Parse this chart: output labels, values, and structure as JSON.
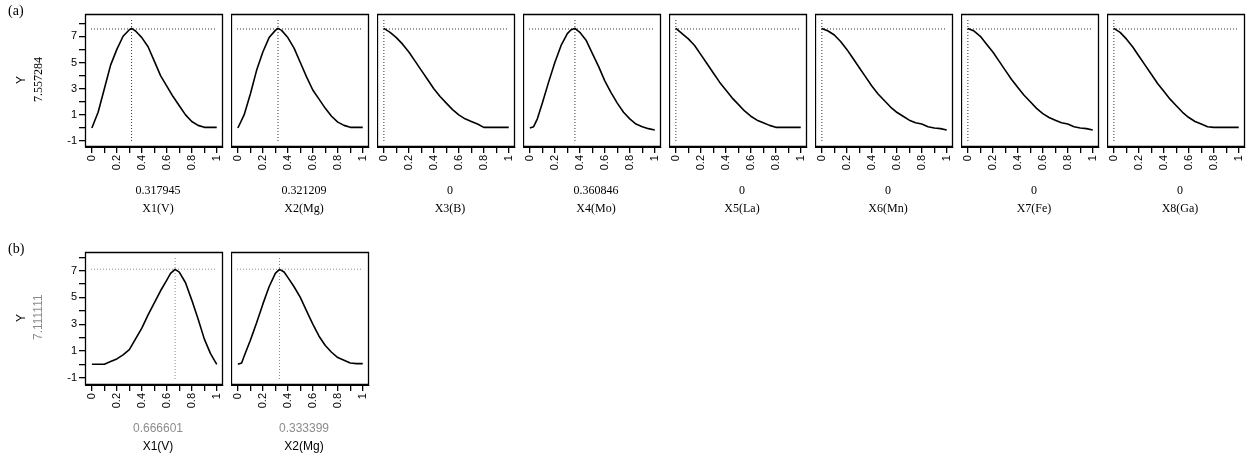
{
  "chart_data": [
    {
      "type": "line",
      "annotations": [
        "(a)",
        "7.557284",
        "0.317945"
      ],
      "xlabel": "X1(V)",
      "ylabel": "Y",
      "marker": "none",
      "xlim": [
        -0.055,
        1.05
      ],
      "ylim": [
        -1.45,
        8.7
      ],
      "xticks": [
        0,
        {
          "value": 0.1,
          "label": null
        },
        0.2,
        {
          "value": 0.3,
          "label": null
        },
        0.4,
        {
          "value": 0.5,
          "label": null
        },
        0.6,
        {
          "value": 0.7,
          "label": null
        },
        0.8,
        {
          "value": 0.9,
          "label": null
        },
        1
      ],
      "yticks": [
        -1,
        {
          "value": 0,
          "label": null
        },
        1,
        {
          "value": 2,
          "label": null
        },
        3,
        {
          "value": 4,
          "label": null
        },
        5,
        {
          "value": 6,
          "label": null
        },
        7,
        {
          "value": 8,
          "label": null
        }
      ],
      "series": [
        {
          "color": "#000000",
          "x": [
            0,
            0.05,
            0.1,
            0.15,
            0.2,
            0.25,
            0.3,
            0.317945,
            0.35,
            0.4,
            0.45,
            0.5,
            0.55,
            0.6,
            0.65,
            0.7,
            0.75,
            0.8,
            0.85,
            0.9,
            1
          ],
          "values": [
            0,
            1.2,
            3.0,
            4.8,
            6.0,
            7.0,
            7.5,
            7.6,
            7.4,
            6.9,
            6.2,
            5.1,
            4.0,
            3.2,
            2.4,
            1.7,
            1.0,
            0.5,
            0.2,
            0.05,
            0.05
          ]
        }
      ],
      "ref_lines": [
        {
          "axis": "y",
          "value": 7.557284,
          "color": "#333333",
          "line_style": "dotted"
        },
        {
          "axis": "x",
          "value": 0.317945,
          "color": "#333333",
          "line_style": "dotted"
        }
      ]
    },
    {
      "type": "line",
      "annotations": [
        "0.321209"
      ],
      "xlabel": "X2(Mg)",
      "marker": "none",
      "tick_labels": "x",
      "xlim": [
        -0.055,
        1.05
      ],
      "ylim": [
        -1.45,
        8.7
      ],
      "xticks": [
        0,
        {
          "value": 0.1,
          "label": null
        },
        0.2,
        {
          "value": 0.3,
          "label": null
        },
        0.4,
        {
          "value": 0.5,
          "label": null
        },
        0.6,
        {
          "value": 0.7,
          "label": null
        },
        0.8,
        {
          "value": 0.9,
          "label": null
        },
        1
      ],
      "series": [
        {
          "color": "#000000",
          "x": [
            0,
            0.05,
            0.1,
            0.15,
            0.2,
            0.25,
            0.3,
            0.321209,
            0.35,
            0.4,
            0.45,
            0.5,
            0.55,
            0.6,
            0.65,
            0.7,
            0.75,
            0.8,
            0.85,
            0.9,
            1
          ],
          "values": [
            0,
            1.0,
            2.6,
            4.4,
            5.8,
            6.9,
            7.45,
            7.6,
            7.45,
            6.9,
            6.1,
            5.0,
            3.9,
            2.9,
            2.2,
            1.5,
            0.9,
            0.45,
            0.2,
            0.05,
            0.05
          ]
        }
      ],
      "ref_lines": [
        {
          "axis": "y",
          "value": 7.557284,
          "color": "#333333",
          "line_style": "dotted"
        },
        {
          "axis": "x",
          "value": 0.321209,
          "color": "#333333",
          "line_style": "dotted"
        }
      ]
    },
    {
      "type": "line",
      "annotations": [
        "0"
      ],
      "xlabel": "X3(B)",
      "marker": "none",
      "tick_labels": "x",
      "xlim": [
        -0.055,
        1.05
      ],
      "ylim": [
        -1.45,
        8.7
      ],
      "xticks": [
        0,
        {
          "value": 0.1,
          "label": null
        },
        0.2,
        {
          "value": 0.3,
          "label": null
        },
        0.4,
        {
          "value": 0.5,
          "label": null
        },
        0.6,
        {
          "value": 0.7,
          "label": null
        },
        0.8,
        {
          "value": 0.9,
          "label": null
        },
        1
      ],
      "series": [
        {
          "color": "#000000",
          "x": [
            0,
            0.05,
            0.1,
            0.15,
            0.2,
            0.25,
            0.3,
            0.35,
            0.4,
            0.45,
            0.5,
            0.55,
            0.6,
            0.65,
            0.7,
            0.75,
            0.8,
            0.9,
            1
          ],
          "values": [
            7.6,
            7.3,
            6.9,
            6.4,
            5.8,
            5.1,
            4.4,
            3.7,
            3.0,
            2.4,
            1.9,
            1.4,
            1.0,
            0.7,
            0.5,
            0.3,
            0.05,
            0.05,
            0.05
          ]
        }
      ],
      "ref_lines": [
        {
          "axis": "y",
          "value": 7.557284,
          "color": "#333333",
          "line_style": "dotted"
        },
        {
          "axis": "x",
          "value": 0,
          "color": "#333333",
          "line_style": "dotted"
        }
      ]
    },
    {
      "type": "line",
      "annotations": [
        "0.360846"
      ],
      "xlabel": "X4(Mo)",
      "marker": "none",
      "tick_labels": "x",
      "xlim": [
        -0.055,
        1.05
      ],
      "ylim": [
        -1.45,
        8.7
      ],
      "xticks": [
        0,
        {
          "value": 0.1,
          "label": null
        },
        0.2,
        {
          "value": 0.3,
          "label": null
        },
        0.4,
        {
          "value": 0.5,
          "label": null
        },
        0.6,
        {
          "value": 0.7,
          "label": null
        },
        0.8,
        {
          "value": 0.9,
          "label": null
        },
        1
      ],
      "series": [
        {
          "color": "#000000",
          "x": [
            0,
            0.03,
            0.06,
            0.1,
            0.15,
            0.2,
            0.25,
            0.3,
            0.33,
            0.360846,
            0.4,
            0.45,
            0.5,
            0.55,
            0.6,
            0.65,
            0.7,
            0.75,
            0.8,
            0.85,
            0.9,
            0.95,
            1
          ],
          "values": [
            0,
            0.1,
            0.7,
            1.9,
            3.5,
            5.0,
            6.3,
            7.2,
            7.5,
            7.6,
            7.3,
            6.7,
            5.7,
            4.7,
            3.6,
            2.7,
            1.9,
            1.2,
            0.7,
            0.3,
            0.1,
            -0.05,
            -0.15
          ]
        }
      ],
      "ref_lines": [
        {
          "axis": "y",
          "value": 7.557284,
          "color": "#333333",
          "line_style": "dotted"
        },
        {
          "axis": "x",
          "value": 0.360846,
          "color": "#333333",
          "line_style": "dotted"
        }
      ]
    },
    {
      "type": "line",
      "annotations": [
        "0"
      ],
      "xlabel": "X5(La)",
      "marker": "none",
      "tick_labels": "x",
      "xlim": [
        -0.055,
        1.05
      ],
      "ylim": [
        -1.45,
        8.7
      ],
      "xticks": [
        0,
        {
          "value": 0.1,
          "label": null
        },
        0.2,
        {
          "value": 0.3,
          "label": null
        },
        0.4,
        {
          "value": 0.5,
          "label": null
        },
        0.6,
        {
          "value": 0.7,
          "label": null
        },
        0.8,
        {
          "value": 0.9,
          "label": null
        },
        1
      ],
      "series": [
        {
          "color": "#000000",
          "x": [
            0,
            0.05,
            0.1,
            0.15,
            0.2,
            0.25,
            0.3,
            0.35,
            0.4,
            0.45,
            0.5,
            0.55,
            0.6,
            0.65,
            0.7,
            0.75,
            0.8,
            0.9,
            1
          ],
          "values": [
            7.6,
            7.2,
            6.8,
            6.3,
            5.6,
            4.9,
            4.2,
            3.5,
            2.9,
            2.3,
            1.8,
            1.3,
            0.9,
            0.6,
            0.4,
            0.2,
            0.05,
            0.05,
            0.05
          ]
        }
      ],
      "ref_lines": [
        {
          "axis": "y",
          "value": 7.557284,
          "color": "#333333",
          "line_style": "dotted"
        },
        {
          "axis": "x",
          "value": 0,
          "color": "#333333",
          "line_style": "dotted"
        }
      ]
    },
    {
      "type": "line",
      "annotations": [
        "0"
      ],
      "xlabel": "X6(Mn)",
      "marker": "none",
      "tick_labels": "x",
      "xlim": [
        -0.055,
        1.05
      ],
      "ylim": [
        -1.45,
        8.7
      ],
      "xticks": [
        0,
        {
          "value": 0.1,
          "label": null
        },
        0.2,
        {
          "value": 0.3,
          "label": null
        },
        0.4,
        {
          "value": 0.5,
          "label": null
        },
        0.6,
        {
          "value": 0.7,
          "label": null
        },
        0.8,
        {
          "value": 0.9,
          "label": null
        },
        1
      ],
      "series": [
        {
          "color": "#000000",
          "x": [
            0,
            0.05,
            0.1,
            0.15,
            0.2,
            0.25,
            0.3,
            0.35,
            0.4,
            0.45,
            0.5,
            0.55,
            0.6,
            0.65,
            0.7,
            0.75,
            0.8,
            0.85,
            0.9,
            0.95,
            1
          ],
          "values": [
            7.6,
            7.4,
            7.1,
            6.6,
            6.0,
            5.3,
            4.6,
            3.9,
            3.2,
            2.6,
            2.1,
            1.6,
            1.2,
            0.9,
            0.6,
            0.4,
            0.3,
            0.1,
            0,
            -0.05,
            -0.15
          ]
        }
      ],
      "ref_lines": [
        {
          "axis": "y",
          "value": 7.557284,
          "color": "#333333",
          "line_style": "dotted"
        },
        {
          "axis": "x",
          "value": 0,
          "color": "#333333",
          "line_style": "dotted"
        }
      ]
    },
    {
      "type": "line",
      "annotations": [
        "0"
      ],
      "xlabel": "X7(Fe)",
      "marker": "none",
      "tick_labels": "x",
      "xlim": [
        -0.055,
        1.05
      ],
      "ylim": [
        -1.45,
        8.7
      ],
      "xticks": [
        0,
        {
          "value": 0.1,
          "label": null
        },
        0.2,
        {
          "value": 0.3,
          "label": null
        },
        0.4,
        {
          "value": 0.5,
          "label": null
        },
        0.6,
        {
          "value": 0.7,
          "label": null
        },
        0.8,
        {
          "value": 0.9,
          "label": null
        },
        1
      ],
      "series": [
        {
          "color": "#000000",
          "x": [
            0,
            0.05,
            0.1,
            0.15,
            0.2,
            0.25,
            0.3,
            0.35,
            0.4,
            0.45,
            0.5,
            0.55,
            0.6,
            0.65,
            0.7,
            0.75,
            0.8,
            0.85,
            0.9,
            0.95,
            1
          ],
          "values": [
            7.6,
            7.4,
            7.0,
            6.4,
            5.8,
            5.1,
            4.4,
            3.7,
            3.1,
            2.5,
            2.0,
            1.5,
            1.1,
            0.8,
            0.6,
            0.4,
            0.3,
            0.1,
            0,
            -0.05,
            -0.15
          ]
        }
      ],
      "ref_lines": [
        {
          "axis": "y",
          "value": 7.557284,
          "color": "#333333",
          "line_style": "dotted"
        },
        {
          "axis": "x",
          "value": 0,
          "color": "#333333",
          "line_style": "dotted"
        }
      ]
    },
    {
      "type": "line",
      "annotations": [
        "0"
      ],
      "xlabel": "X8(Ga)",
      "marker": "none",
      "tick_labels": "x",
      "xlim": [
        -0.055,
        1.05
      ],
      "ylim": [
        -1.45,
        8.7
      ],
      "xticks": [
        0,
        {
          "value": 0.1,
          "label": null
        },
        0.2,
        {
          "value": 0.3,
          "label": null
        },
        0.4,
        {
          "value": 0.5,
          "label": null
        },
        0.6,
        {
          "value": 0.7,
          "label": null
        },
        0.8,
        {
          "value": 0.9,
          "label": null
        },
        1
      ],
      "series": [
        {
          "color": "#000000",
          "x": [
            0,
            0.05,
            0.1,
            0.15,
            0.2,
            0.25,
            0.3,
            0.35,
            0.4,
            0.45,
            0.5,
            0.55,
            0.6,
            0.65,
            0.7,
            0.75,
            0.8,
            0.9,
            1
          ],
          "values": [
            7.6,
            7.3,
            6.8,
            6.2,
            5.5,
            4.8,
            4.1,
            3.4,
            2.8,
            2.2,
            1.7,
            1.2,
            0.8,
            0.5,
            0.3,
            0.1,
            0.05,
            0.05,
            0.05
          ]
        }
      ],
      "ref_lines": [
        {
          "axis": "y",
          "value": 7.557284,
          "color": "#333333",
          "line_style": "dotted"
        },
        {
          "axis": "x",
          "value": 0,
          "color": "#333333",
          "line_style": "dotted"
        }
      ]
    },
    {
      "type": "line",
      "annotations": [
        "(b)",
        "7.111111",
        "0.666601"
      ],
      "xlabel": "X1(V)",
      "ylabel": "Y",
      "marker": "none",
      "xlim": [
        -0.055,
        1.05
      ],
      "ylim": [
        -1.55,
        8.4
      ],
      "xticks": [
        0,
        {
          "value": 0.1,
          "label": null
        },
        0.2,
        {
          "value": 0.3,
          "label": null
        },
        0.4,
        {
          "value": 0.5,
          "label": null
        },
        0.6,
        {
          "value": 0.7,
          "label": null
        },
        0.8,
        {
          "value": 0.9,
          "label": null
        },
        1
      ],
      "yticks": [
        -1,
        {
          "value": 0,
          "label": null
        },
        1,
        {
          "value": 2,
          "label": null
        },
        3,
        {
          "value": 4,
          "label": null
        },
        5,
        {
          "value": 6,
          "label": null
        },
        7,
        {
          "value": 8,
          "label": null
        }
      ],
      "series": [
        {
          "color": "#000000",
          "x": [
            0,
            0.05,
            0.1,
            0.15,
            0.2,
            0.25,
            0.3,
            0.35,
            0.4,
            0.45,
            0.5,
            0.55,
            0.6,
            0.63,
            0.666601,
            0.7,
            0.75,
            0.8,
            0.85,
            0.9,
            0.95,
            1
          ],
          "values": [
            0,
            0,
            0,
            0.2,
            0.4,
            0.7,
            1.1,
            1.9,
            2.7,
            3.7,
            4.6,
            5.5,
            6.3,
            6.8,
            7.1,
            6.9,
            6.1,
            4.8,
            3.4,
            1.9,
            0.8,
            0
          ]
        }
      ],
      "ref_lines": [
        {
          "axis": "y",
          "value": 7.111111,
          "color": "#8c8c8c",
          "line_style": "dotted"
        },
        {
          "axis": "x",
          "value": 0.666601,
          "color": "#8c8c8c",
          "line_style": "dotted"
        }
      ]
    },
    {
      "type": "line",
      "annotations": [
        "0.333399"
      ],
      "xlabel": "X2(Mg)",
      "marker": "none",
      "tick_labels": "x",
      "xlim": [
        -0.055,
        1.05
      ],
      "ylim": [
        -1.55,
        8.4
      ],
      "xticks": [
        0,
        {
          "value": 0.1,
          "label": null
        },
        0.2,
        {
          "value": 0.3,
          "label": null
        },
        0.4,
        {
          "value": 0.5,
          "label": null
        },
        0.6,
        {
          "value": 0.7,
          "label": null
        },
        0.8,
        {
          "value": 0.9,
          "label": null
        },
        1
      ],
      "series": [
        {
          "color": "#000000",
          "x": [
            0,
            0.03,
            0.05,
            0.1,
            0.15,
            0.2,
            0.25,
            0.3,
            0.333399,
            0.37,
            0.4,
            0.45,
            0.5,
            0.55,
            0.6,
            0.65,
            0.7,
            0.75,
            0.8,
            0.85,
            0.9,
            0.95,
            1
          ],
          "values": [
            0,
            0.1,
            0.6,
            1.8,
            3.1,
            4.5,
            5.8,
            6.8,
            7.1,
            6.9,
            6.5,
            5.8,
            5.0,
            4.0,
            3.0,
            2.1,
            1.4,
            0.9,
            0.5,
            0.3,
            0.1,
            0.05,
            0.05
          ]
        }
      ],
      "ref_lines": [
        {
          "axis": "y",
          "value": 7.111111,
          "color": "#8c8c8c",
          "line_style": "dotted"
        },
        {
          "axis": "x",
          "value": 0.333399,
          "color": "#8c8c8c",
          "line_style": "dotted"
        }
      ]
    }
  ]
}
